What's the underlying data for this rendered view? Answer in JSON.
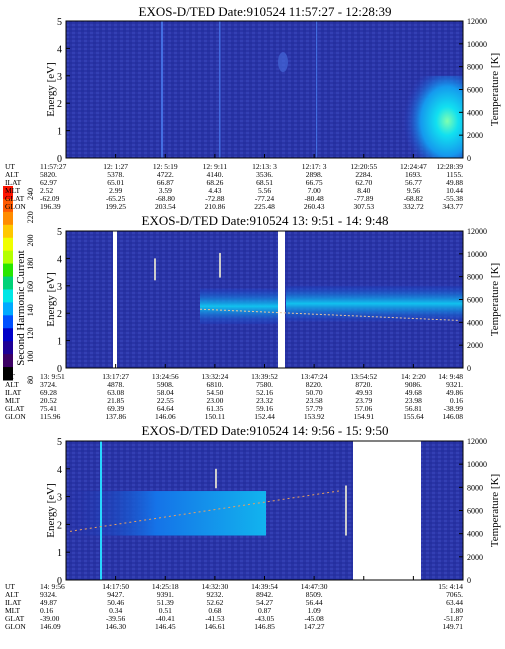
{
  "colorbar": {
    "label": "Second Harmonic Current",
    "ticks": [
      "240",
      "220",
      "200",
      "180",
      "160",
      "140",
      "120",
      "100",
      "80"
    ],
    "colors": [
      "#ff1400",
      "#ff5a00",
      "#ff8c00",
      "#ffc800",
      "#f0ff00",
      "#b4ff00",
      "#28e600",
      "#00d278",
      "#00e6e6",
      "#00aaff",
      "#0050ff",
      "#0000c8",
      "#1e0096",
      "#3c0064",
      "#000000"
    ]
  },
  "chart_data": [
    {
      "type": "heatmap",
      "title": "EXOS-D/TED    Date:910524  11:57:27 - 12:28:39",
      "ylabel": "Energy [eV]",
      "y2label": "Temperature [K]",
      "ylim": [
        0,
        5
      ],
      "y2lim": [
        0,
        12000
      ],
      "yticks": [
        "0",
        "1",
        "2",
        "3",
        "4",
        "5"
      ],
      "y2ticks": [
        "0",
        "2000",
        "4000",
        "6000",
        "8000",
        "10000",
        "12000"
      ],
      "ephemeris": [
        {
          "label": "UT",
          "values": [
            "11:57:27",
            "12: 1:27",
            "12: 5:19",
            "12: 9:11",
            "12:13: 3",
            "12:17: 3",
            "12:20:55",
            "12:24:47",
            "12:28:39"
          ]
        },
        {
          "label": "ALT",
          "values": [
            "5820.",
            "5378.",
            "4722.",
            "4140.",
            "3536.",
            "2898.",
            "2284.",
            "1693.",
            "1155."
          ]
        },
        {
          "label": "ILAT",
          "values": [
            "62.97",
            "65.01",
            "66.87",
            "68.26",
            "68.51",
            "66.75",
            "62.70",
            "56.77",
            "49.88"
          ]
        },
        {
          "label": "MLT",
          "values": [
            "2.52",
            "2.99",
            "3.59",
            "4.43",
            "5.56",
            "7.00",
            "8.40",
            "9.56",
            "10.44"
          ]
        },
        {
          "label": "GLAT",
          "values": [
            "-62.09",
            "-65.25",
            "-68.80",
            "-72.88",
            "-77.24",
            "-80.48",
            "-77.89",
            "-68.82",
            "-55.38"
          ]
        },
        {
          "label": "GLON",
          "values": [
            "196.39",
            "199.25",
            "203.54",
            "210.86",
            "225.48",
            "260.43",
            "307.53",
            "332.72",
            "343.77"
          ]
        }
      ]
    },
    {
      "type": "heatmap",
      "title": "EXOS-D/TED    Date:910524  13: 9:51 - 14: 9:48",
      "ylabel": "Energy [eV]",
      "y2label": "Temperature [K]",
      "ylim": [
        0,
        5
      ],
      "y2lim": [
        0,
        12000
      ],
      "yticks": [
        "0",
        "1",
        "2",
        "3",
        "4",
        "5"
      ],
      "y2ticks": [
        "0",
        "2000",
        "4000",
        "6000",
        "8000",
        "10000",
        "12000"
      ],
      "ephemeris": [
        {
          "label": "UT",
          "values": [
            "13: 9:51",
            "13:17:27",
            "13:24:56",
            "13:32:24",
            "13:39:52",
            "13:47:24",
            "13:54:52",
            "14: 2:20",
            "14: 9:48"
          ]
        },
        {
          "label": "ALT",
          "values": [
            "3724.",
            "4878.",
            "5908.",
            "6810.",
            "7580.",
            "8220.",
            "8720.",
            "9086.",
            "9321."
          ]
        },
        {
          "label": "ILAT",
          "values": [
            "69.28",
            "63.08",
            "58.04",
            "54.50",
            "52.16",
            "50.70",
            "49.93",
            "49.68",
            "49.86"
          ]
        },
        {
          "label": "MLT",
          "values": [
            "20.52",
            "21.85",
            "22.55",
            "23.00",
            "23.32",
            "23.58",
            "23.79",
            "23.98",
            "0.16"
          ]
        },
        {
          "label": "GLAT",
          "values": [
            "75.41",
            "69.39",
            "64.64",
            "61.35",
            "59.16",
            "57.79",
            "57.06",
            "56.81",
            "-38.99"
          ]
        },
        {
          "label": "GLON",
          "values": [
            "115.96",
            "137.86",
            "146.06",
            "150.11",
            "152.44",
            "153.92",
            "154.91",
            "155.64",
            "146.08"
          ]
        }
      ]
    },
    {
      "type": "heatmap",
      "title": "EXOS-D/TED    Date:910524  14: 9:56 - 15: 9:50",
      "ylabel": "Energy [eV]",
      "y2label": "Temperature [K]",
      "ylim": [
        0,
        5
      ],
      "y2lim": [
        0,
        12000
      ],
      "yticks": [
        "0",
        "1",
        "2",
        "3",
        "4",
        "5"
      ],
      "y2ticks": [
        "0",
        "2000",
        "4000",
        "6000",
        "8000",
        "10000",
        "12000"
      ],
      "ephemeris": [
        {
          "label": "UT",
          "values": [
            "14: 9:56",
            "14:17:50",
            "14:25:18",
            "14:32:30",
            "14:39:54",
            "14:47:30",
            "",
            "",
            "15: 4:14"
          ]
        },
        {
          "label": "ALT",
          "values": [
            "9324.",
            "9427.",
            "9391.",
            "9232.",
            "8942.",
            "8509.",
            "",
            "",
            "7065."
          ]
        },
        {
          "label": "ILAT",
          "values": [
            "49.87",
            "50.46",
            "51.39",
            "52.62",
            "54.27",
            "56.44",
            "",
            "",
            "63.44"
          ]
        },
        {
          "label": "MLT",
          "values": [
            "0.16",
            "0.34",
            "0.51",
            "0.68",
            "0.87",
            "1.09",
            "",
            "",
            "1.80"
          ]
        },
        {
          "label": "GLAT",
          "values": [
            "-39.00",
            "-39.56",
            "-40.41",
            "-41.53",
            "-43.05",
            "-45.08",
            "",
            "",
            "-51.87"
          ]
        },
        {
          "label": "GLON",
          "values": [
            "146.09",
            "146.30",
            "146.45",
            "146.61",
            "146.85",
            "147.27",
            "",
            "",
            "149.71"
          ]
        }
      ]
    }
  ]
}
